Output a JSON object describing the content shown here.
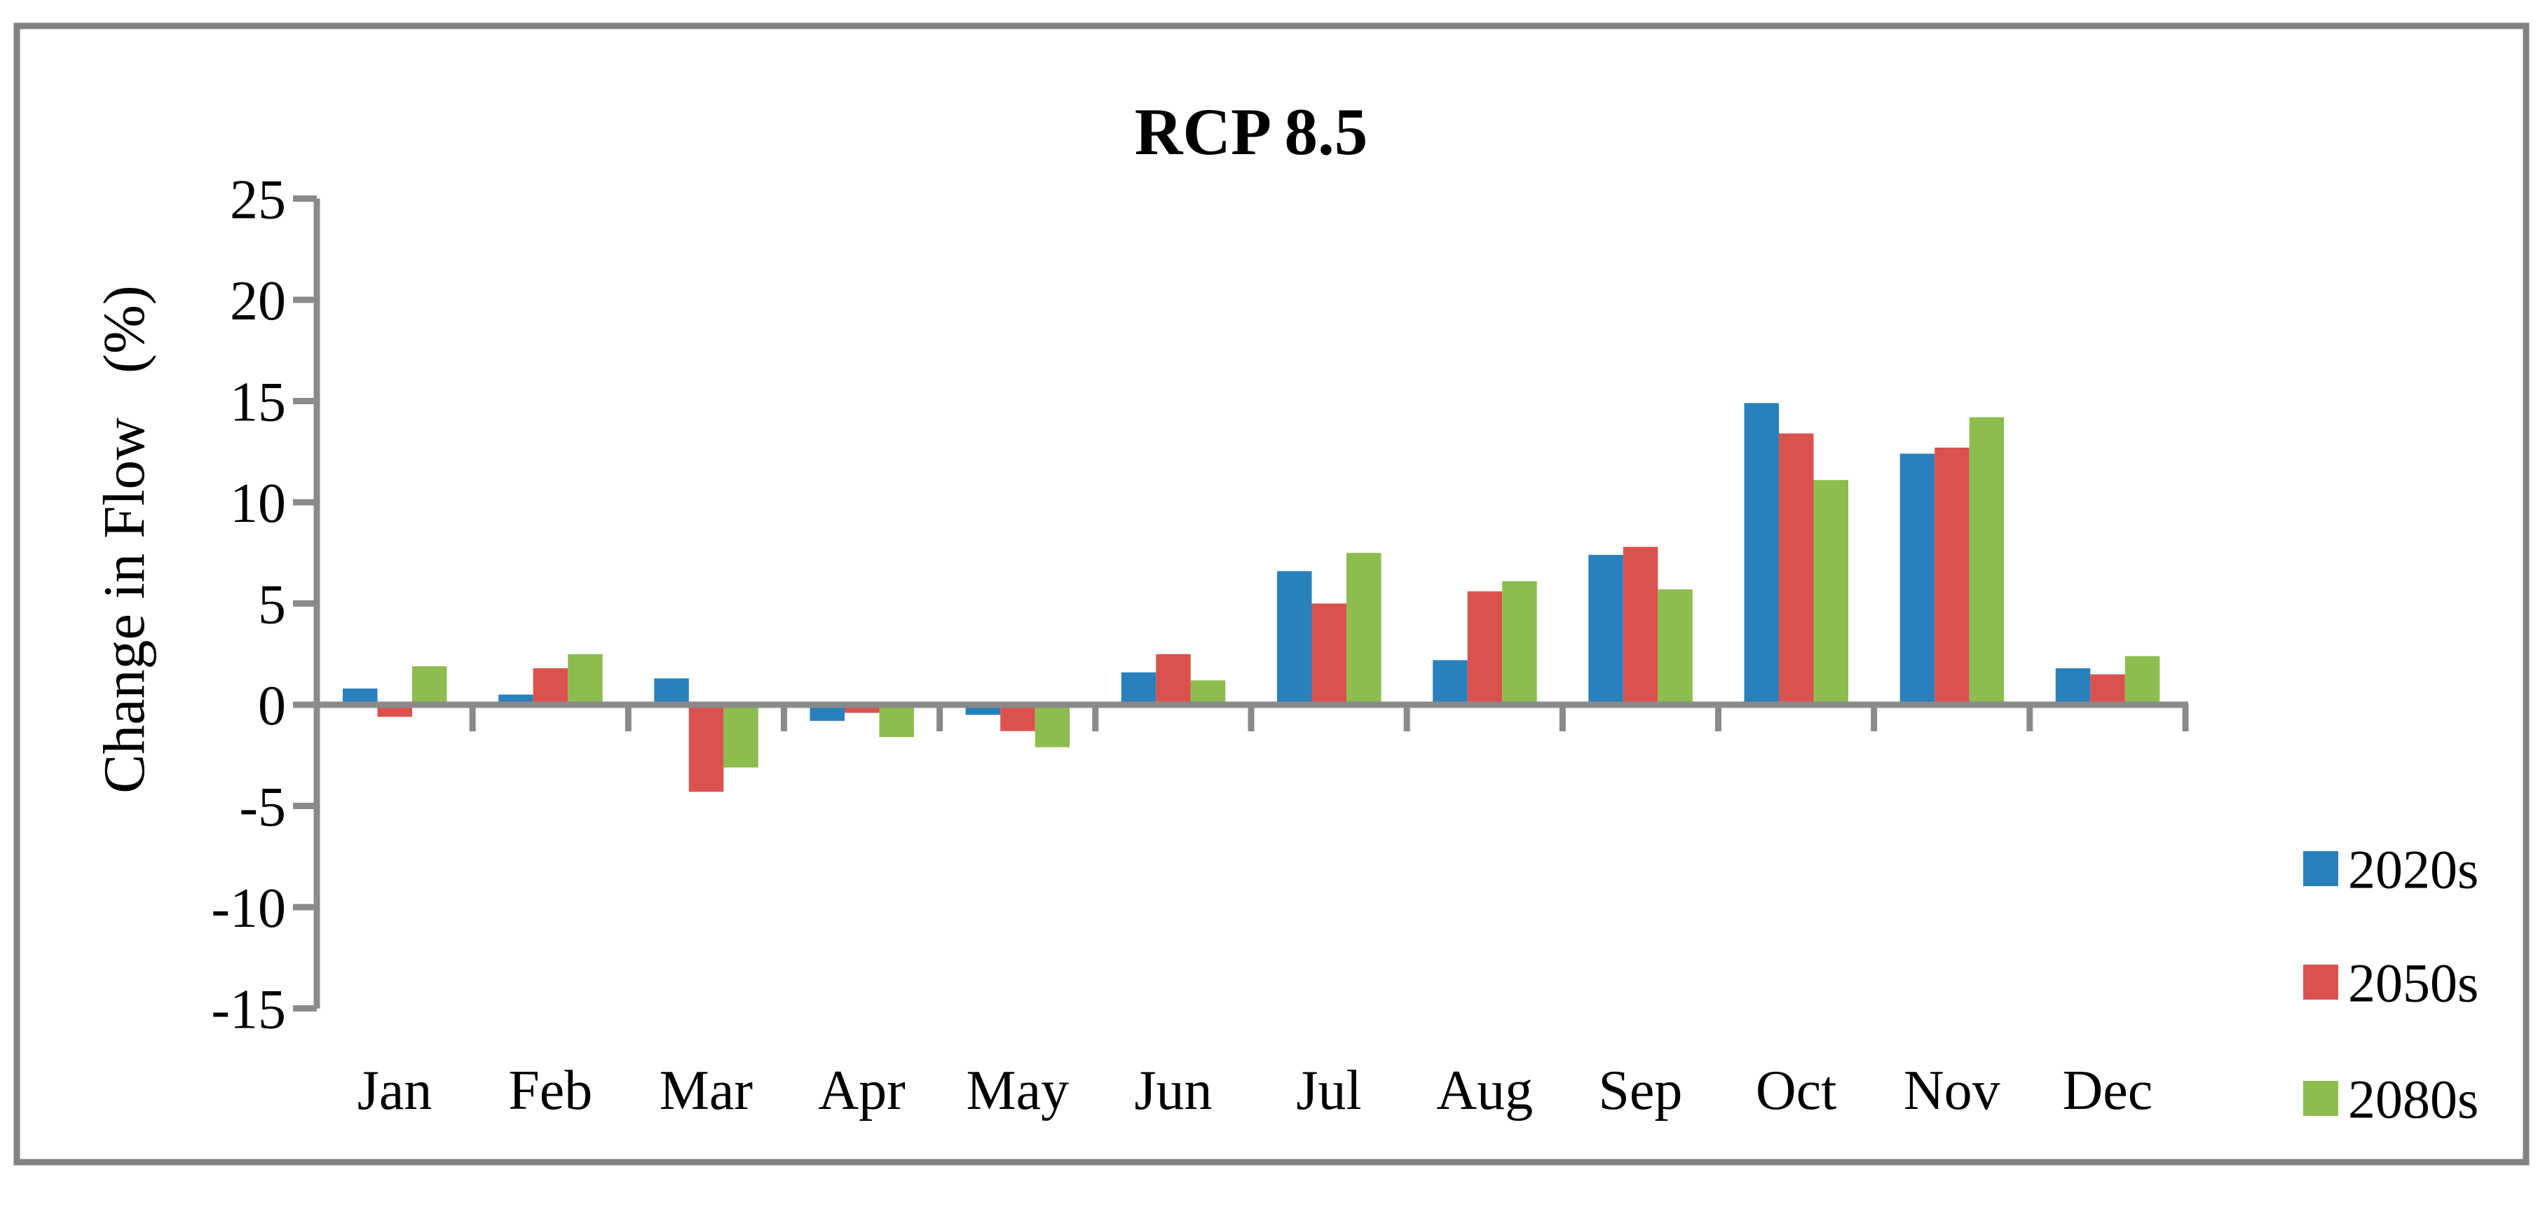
{
  "figure": {
    "background": "#FFFFFF",
    "border_color": "#828282",
    "axis_color": "#8A8A8A",
    "text_color": "#000000"
  },
  "chart_data": {
    "type": "bar",
    "title": "RCP 8.5",
    "ylabel": "Change in Flow  (%)",
    "xlabel": "",
    "categories": [
      "Jan",
      "Feb",
      "Mar",
      "Apr",
      "May",
      "Jun",
      "Jul",
      "Aug",
      "Sep",
      "Oct",
      "Nov",
      "Dec"
    ],
    "series": [
      {
        "name": "2020s",
        "color": "#2980BC",
        "values": [
          0.8,
          0.5,
          1.3,
          -0.8,
          -0.5,
          1.6,
          6.6,
          2.2,
          7.4,
          14.9,
          12.4,
          1.8
        ]
      },
      {
        "name": "2050s",
        "color": "#DB514E",
        "values": [
          -0.6,
          1.8,
          -4.3,
          -0.4,
          -1.3,
          2.5,
          5.0,
          5.6,
          7.8,
          13.4,
          12.7,
          1.5
        ]
      },
      {
        "name": "2080s",
        "color": "#8DBD4E",
        "values": [
          1.9,
          2.5,
          -3.1,
          -1.6,
          -2.1,
          1.2,
          7.5,
          6.1,
          5.7,
          11.1,
          14.2,
          2.4
        ]
      }
    ],
    "ylim": [
      -15,
      25
    ],
    "yticks": [
      25,
      20,
      15,
      10,
      5,
      0,
      -5,
      -10,
      -15
    ],
    "grid": false,
    "legend_position": "right-bottom",
    "legend_labels": [
      "2020s",
      "2050s",
      "2080s"
    ]
  }
}
